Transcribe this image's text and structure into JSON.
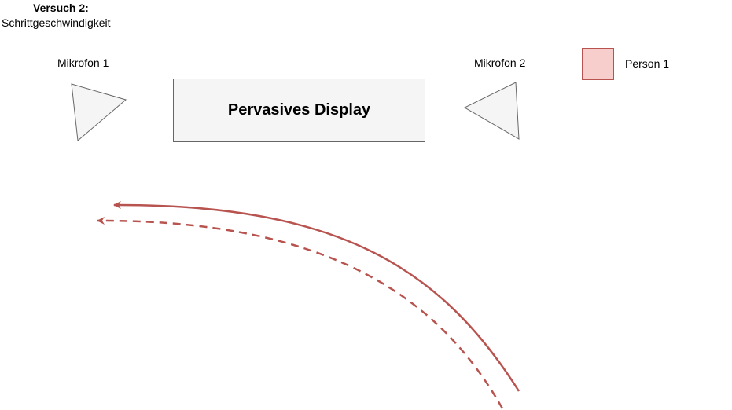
{
  "header": {
    "title": "Versuch 2:",
    "subtitle": "Schrittgeschwindigkeit"
  },
  "microphones": [
    {
      "label": "Mikrofon 1"
    },
    {
      "label": "Mikrofon 2"
    }
  ],
  "display": {
    "label": "Pervasives Display"
  },
  "legend": {
    "items": [
      {
        "label": "Person 1",
        "fill": "#f8cecc",
        "stroke": "#b85450"
      }
    ]
  },
  "colors": {
    "path": "#b85450",
    "shape_fill": "#f5f5f5",
    "shape_stroke": "#666666"
  }
}
